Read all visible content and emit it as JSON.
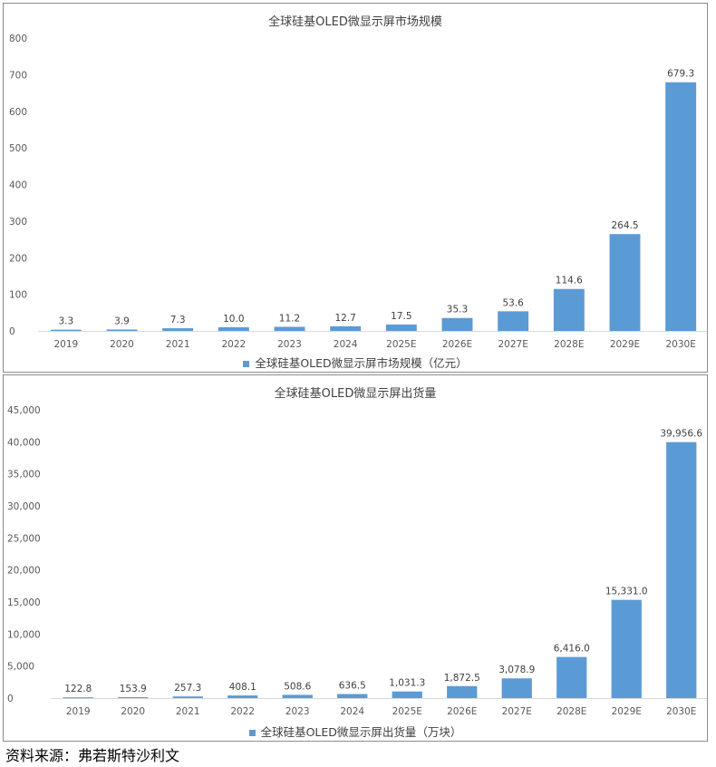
{
  "chart_data": [
    {
      "type": "bar",
      "title": "全球硅基OLED微显示屏市场规模",
      "categories": [
        "2019",
        "2020",
        "2021",
        "2022",
        "2023",
        "2024",
        "2025E",
        "2026E",
        "2027E",
        "2028E",
        "2029E",
        "2030E"
      ],
      "series": [
        {
          "name": "全球硅基OLED微显示屏市场规模（亿元）",
          "values": [
            3.3,
            3.9,
            7.3,
            10.0,
            11.2,
            12.7,
            17.5,
            35.3,
            53.6,
            114.6,
            264.5,
            679.3
          ]
        }
      ],
      "data_labels": [
        "3.3",
        "3.9",
        "7.3",
        "10.0",
        "11.2",
        "12.7",
        "17.5",
        "35.3",
        "53.6",
        "114.6",
        "264.5",
        "679.3"
      ],
      "yticks": [
        "0",
        "100",
        "200",
        "300",
        "400",
        "500",
        "600",
        "700",
        "800"
      ],
      "ylim": [
        0,
        800
      ],
      "color": "#5b9bd5",
      "legend_position": "bottom",
      "grid": false
    },
    {
      "type": "bar",
      "title": "全球硅基OLED微显示屏出货量",
      "categories": [
        "2019",
        "2020",
        "2021",
        "2022",
        "2023",
        "2024",
        "2025E",
        "2026E",
        "2027E",
        "2028E",
        "2029E",
        "2030E"
      ],
      "series": [
        {
          "name": "全球硅基OLED微显示屏出货量（万块）",
          "values": [
            122.8,
            153.9,
            257.3,
            408.1,
            508.6,
            636.5,
            1031.3,
            1872.5,
            3078.9,
            6416.0,
            15331.0,
            39956.6
          ]
        }
      ],
      "data_labels": [
        "122.8",
        "153.9",
        "257.3",
        "408.1",
        "508.6",
        "636.5",
        "1,031.3",
        "1,872.5",
        "3,078.9",
        "6,416.0",
        "15,331.0",
        "39,956.6"
      ],
      "yticks": [
        "0",
        "5,000",
        "10,000",
        "15,000",
        "20,000",
        "25,000",
        "30,000",
        "35,000",
        "40,000",
        "45,000"
      ],
      "ylim": [
        0,
        45000
      ],
      "color": "#5b9bd5",
      "legend_position": "bottom",
      "grid": false
    }
  ],
  "source_note": "资料来源：弗若斯特沙利文"
}
